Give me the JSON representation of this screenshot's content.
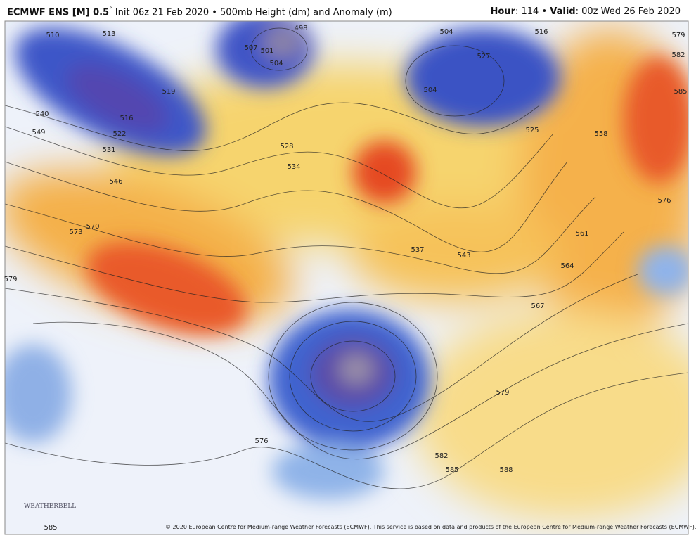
{
  "header": {
    "title_bold": "ECMWF ENS [M] 0.5",
    "title_degree": "°",
    "title_rest": " Init 06z 21 Feb 2020 • 500mb Height (dm) and Anomaly (m)",
    "hour_label": "Hour",
    "hour_value": ": 114 • ",
    "valid_label": "Valid",
    "valid_value": ": 00z Wed 26 Feb 2020"
  },
  "map": {
    "contour_labels": [
      "510",
      "513",
      "498",
      "507",
      "501",
      "504",
      "504",
      "516",
      "579",
      "582",
      "585",
      "527",
      "504",
      "519",
      "516",
      "522",
      "540",
      "549",
      "531",
      "546",
      "528",
      "534",
      "525",
      "558",
      "576",
      "570",
      "573",
      "561",
      "537",
      "543",
      "564",
      "579",
      "567",
      "576",
      "579",
      "582",
      "585",
      "588",
      "585"
    ]
  },
  "footer": {
    "logo": "WEATHERBELL",
    "copyright": "© 2020 European Centre for Medium-range Weather Forecasts (ECMWF). This service is based on data and products of the European Centre for Medium-range Weather Forecasts (ECMWF)."
  }
}
